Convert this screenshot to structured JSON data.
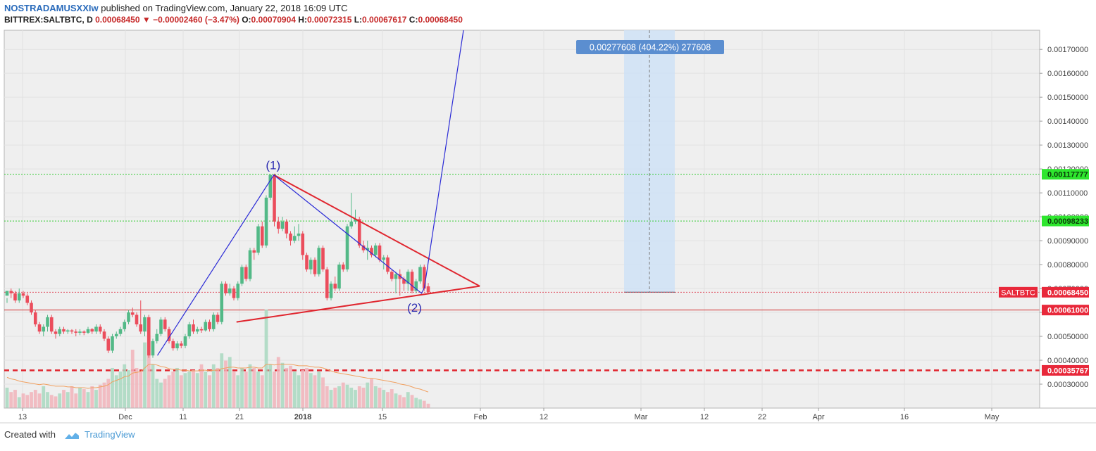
{
  "header": {
    "author": "NOSTRADAMUSXXIw",
    "published": "published on TradingView.com, January 22, 2018 16:09 UTC",
    "symbol": "BITTREX:SALTBTC, D",
    "last": "0.00068450",
    "change": "−0.00002460 (−3.47%)",
    "o_label": "O:",
    "o": "0.00070904",
    "h_label": "H:",
    "h": "0.00072315",
    "l_label": "L:",
    "l": "0.00067617",
    "c_label": "C:",
    "c": "0.00068450"
  },
  "footer": {
    "created": "Created with",
    "brand": "TradingView"
  },
  "colors": {
    "up": "#53b987",
    "down": "#eb4d5c",
    "triangle": "#e0262f",
    "wave": "#2b2bd6",
    "measure": "#cfe2f6",
    "support": "#e0262f",
    "level_green": "#33cc33"
  },
  "chart_data": {
    "type": "candlestick",
    "title": "",
    "xlabel": "",
    "ylabel": "",
    "ylim": [
      0.0002,
      0.00178
    ],
    "x_ticks": [
      "13",
      "Dec",
      "11",
      "21",
      "2018",
      "15",
      "Feb",
      "12",
      "Mar",
      "12",
      "22",
      "Apr",
      "16",
      "May"
    ],
    "y_ticks": [
      "0.00030000",
      "0.00040000",
      "0.00050000",
      "0.00060000",
      "0.00070000",
      "0.00080000",
      "0.00090000",
      "0.00100000",
      "0.00110000",
      "0.00120000",
      "0.00130000",
      "0.00140000",
      "0.00150000",
      "0.00160000",
      "0.00170000"
    ],
    "price_labels": [
      {
        "text": "0.00117777",
        "value": 0.00117777,
        "style": "green"
      },
      {
        "text": "0.00098233",
        "value": 0.00098233,
        "style": "green"
      },
      {
        "text": "0.00068450",
        "value": 0.0006845,
        "style": "red",
        "tag": "SALTBTC"
      },
      {
        "text": "0.00061000",
        "value": 0.00061,
        "style": "red"
      },
      {
        "text": "0.00035767",
        "value": 0.00035767,
        "style": "red"
      }
    ],
    "measure_label": "0.00277608 (404.22%) 277608",
    "wave_labels": [
      "(1)",
      "(2)"
    ],
    "candles": [
      [
        0.00067,
        0.00069,
        0.00066,
        0.00064
      ],
      [
        0.00069,
        0.00068,
        0.0007,
        0.00066
      ],
      [
        0.00068,
        0.00065,
        0.00069,
        0.00064
      ],
      [
        0.00065,
        0.00068,
        0.0007,
        0.00064
      ],
      [
        0.00068,
        0.00067,
        0.00069,
        0.00066
      ],
      [
        0.00067,
        0.00064,
        0.00068,
        0.00063
      ],
      [
        0.00064,
        0.0006,
        0.00065,
        0.00059
      ],
      [
        0.0006,
        0.00055,
        0.00061,
        0.00054
      ],
      [
        0.00055,
        0.00052,
        0.00056,
        0.00051
      ],
      [
        0.00052,
        0.00054,
        0.00055,
        0.0005
      ],
      [
        0.00054,
        0.00058,
        0.00059,
        0.00052
      ],
      [
        0.00058,
        0.00052,
        0.00059,
        0.00051
      ],
      [
        0.00052,
        0.00051,
        0.00053,
        0.00049
      ],
      [
        0.00051,
        0.00053,
        0.00054,
        0.0005
      ],
      [
        0.00053,
        0.00052,
        0.00054,
        0.00051
      ],
      [
        0.00052,
        0.000525,
        0.00053,
        0.00051
      ],
      [
        0.000525,
        0.00052,
        0.00053,
        0.00051
      ],
      [
        0.00052,
        0.000515,
        0.00053,
        0.0005
      ],
      [
        0.000515,
        0.00052,
        0.00053,
        0.000505
      ],
      [
        0.00052,
        0.000515,
        0.000525,
        0.000505
      ],
      [
        0.000515,
        0.00053,
        0.00054,
        0.00051
      ],
      [
        0.00053,
        0.00052,
        0.000535,
        0.00051
      ],
      [
        0.00052,
        0.00054,
        0.00055,
        0.00051
      ],
      [
        0.00054,
        0.00052,
        0.00055,
        0.00051
      ],
      [
        0.00052,
        0.00049,
        0.00053,
        0.00048
      ],
      [
        0.00049,
        0.00044,
        0.0005,
        0.00043
      ],
      [
        0.00044,
        0.0005,
        0.00051,
        0.00043
      ],
      [
        0.0005,
        0.00051,
        0.00052,
        0.00049
      ],
      [
        0.00051,
        0.00053,
        0.00054,
        0.0005
      ],
      [
        0.00053,
        0.00056,
        0.00057,
        0.00052
      ],
      [
        0.00056,
        0.0006,
        0.00061,
        0.00055
      ],
      [
        0.0006,
        0.00059,
        0.00062,
        0.00058
      ],
      [
        0.00059,
        0.00055,
        0.0006,
        0.00054
      ],
      [
        0.00055,
        0.00052,
        0.00065,
        0.00051
      ],
      [
        0.00052,
        0.00058,
        0.00059,
        0.0005
      ],
      [
        0.00058,
        0.00042,
        0.00059,
        0.00041
      ],
      [
        0.00042,
        0.00048,
        0.00049,
        0.00041
      ],
      [
        0.00048,
        0.00051,
        0.00053,
        0.00047
      ],
      [
        0.00051,
        0.00057,
        0.00058,
        0.0005
      ],
      [
        0.00057,
        0.00053,
        0.00058,
        0.00052
      ],
      [
        0.00053,
        0.00048,
        0.00054,
        0.00047
      ],
      [
        0.00048,
        0.00045,
        0.00049,
        0.00044
      ],
      [
        0.00045,
        0.00047,
        0.00048,
        0.00044
      ],
      [
        0.00047,
        0.00046,
        0.00048,
        0.00045
      ],
      [
        0.00046,
        0.0005,
        0.00051,
        0.00045
      ],
      [
        0.0005,
        0.00055,
        0.00056,
        0.00049
      ],
      [
        0.00055,
        0.00052,
        0.00057,
        0.00051
      ],
      [
        0.00052,
        0.00053,
        0.00054,
        0.00051
      ],
      [
        0.00053,
        0.000525,
        0.00054,
        0.000515
      ],
      [
        0.000525,
        0.00056,
        0.00057,
        0.00052
      ],
      [
        0.00056,
        0.00053,
        0.00057,
        0.00052
      ],
      [
        0.00053,
        0.00059,
        0.0006,
        0.00052
      ],
      [
        0.00059,
        0.00056,
        0.0006,
        0.00055
      ],
      [
        0.00056,
        0.00072,
        0.00073,
        0.00055
      ],
      [
        0.00072,
        0.00068,
        0.00073,
        0.00067
      ],
      [
        0.00068,
        0.0007,
        0.00072,
        0.00067
      ],
      [
        0.0007,
        0.00066,
        0.00071,
        0.00065
      ],
      [
        0.00066,
        0.00072,
        0.00073,
        0.00065
      ],
      [
        0.00072,
        0.00079,
        0.0008,
        0.00071
      ],
      [
        0.00079,
        0.00074,
        0.0008,
        0.00073
      ],
      [
        0.00074,
        0.00086,
        0.00087,
        0.00073
      ],
      [
        0.00086,
        0.00085,
        0.00087,
        0.00082
      ],
      [
        0.00085,
        0.00096,
        0.00097,
        0.00084
      ],
      [
        0.00096,
        0.00088,
        0.00098,
        0.00087
      ],
      [
        0.00088,
        0.00108,
        0.00109,
        0.00087
      ],
      [
        0.00108,
        0.001175,
        0.00118,
        0.00107
      ],
      [
        0.001175,
        0.00098,
        0.00118,
        0.00096
      ],
      [
        0.00098,
        0.00095,
        0.001,
        0.00093
      ],
      [
        0.00095,
        0.00098,
        0.001,
        0.00094
      ],
      [
        0.00098,
        0.00093,
        0.00099,
        0.00091
      ],
      [
        0.00093,
        0.0009,
        0.00094,
        0.00088
      ],
      [
        0.0009,
        0.00092,
        0.00096,
        0.00089
      ],
      [
        0.00092,
        0.00093,
        0.00097,
        0.0009
      ],
      [
        0.00093,
        0.00084,
        0.00094,
        0.00082
      ],
      [
        0.00084,
        0.00078,
        0.00085,
        0.00077
      ],
      [
        0.00078,
        0.00082,
        0.00083,
        0.00076
      ],
      [
        0.00082,
        0.00076,
        0.00083,
        0.00075
      ],
      [
        0.00076,
        0.00087,
        0.00088,
        0.00075
      ],
      [
        0.00087,
        0.00078,
        0.00088,
        0.00077
      ],
      [
        0.00078,
        0.00066,
        0.00079,
        0.00065
      ],
      [
        0.00066,
        0.00072,
        0.00073,
        0.00065
      ],
      [
        0.00072,
        0.0007,
        0.00075,
        0.00069
      ],
      [
        0.0007,
        0.0008,
        0.00081,
        0.00069
      ],
      [
        0.0008,
        0.00078,
        0.00081,
        0.00077
      ],
      [
        0.00078,
        0.00096,
        0.00097,
        0.00077
      ],
      [
        0.00096,
        0.00098,
        0.0011,
        0.00095
      ],
      [
        0.00098,
        0.00099,
        0.00103,
        0.00097
      ],
      [
        0.00099,
        0.00088,
        0.001,
        0.00087
      ],
      [
        0.00088,
        0.00086,
        0.0009,
        0.00085
      ],
      [
        0.00086,
        0.00087,
        0.0009,
        0.00082
      ],
      [
        0.00087,
        0.00084,
        0.00088,
        0.00083
      ],
      [
        0.00084,
        0.00088,
        0.00089,
        0.00083
      ],
      [
        0.00088,
        0.00082,
        0.00089,
        0.00081
      ],
      [
        0.00082,
        0.00083,
        0.00084,
        0.00078
      ],
      [
        0.00083,
        0.00077,
        0.00084,
        0.00076
      ],
      [
        0.00077,
        0.00074,
        0.00078,
        0.00073
      ],
      [
        0.00074,
        0.00076,
        0.00077,
        0.00068
      ],
      [
        0.00076,
        0.00074,
        0.00078,
        0.00067
      ],
      [
        0.00074,
        0.00072,
        0.00075,
        0.00069
      ],
      [
        0.00072,
        0.00077,
        0.00078,
        0.00069
      ],
      [
        0.00077,
        0.00069,
        0.00078,
        0.00068
      ],
      [
        0.00069,
        0.00073,
        0.00074,
        0.00068
      ],
      [
        0.00073,
        0.00079,
        0.0008,
        0.00072
      ],
      [
        0.00079,
        0.0007,
        0.0008,
        0.00069
      ],
      [
        0.000709,
        0.000685,
        0.000723,
        0.000676
      ]
    ],
    "volume": [
      0.28,
      0.22,
      0.25,
      0.15,
      0.2,
      0.18,
      0.22,
      0.25,
      0.2,
      0.3,
      0.22,
      0.18,
      0.16,
      0.2,
      0.25,
      0.22,
      0.3,
      0.2,
      0.28,
      0.26,
      0.22,
      0.3,
      0.25,
      0.32,
      0.35,
      0.4,
      0.55,
      0.45,
      0.5,
      0.6,
      0.52,
      0.8,
      0.55,
      0.5,
      0.9,
      1.0,
      0.6,
      0.4,
      0.35,
      0.4,
      0.45,
      0.5,
      0.55,
      0.45,
      0.48,
      0.5,
      0.52,
      0.48,
      0.6,
      0.5,
      0.45,
      0.6,
      0.55,
      0.75,
      0.65,
      0.7,
      0.5,
      0.45,
      0.55,
      0.5,
      0.6,
      0.55,
      0.5,
      0.45,
      1.35,
      0.6,
      0.5,
      0.7,
      0.62,
      0.55,
      0.58,
      0.5,
      0.45,
      0.52,
      0.55,
      0.48,
      0.45,
      0.5,
      0.42,
      0.3,
      0.25,
      0.28,
      0.3,
      0.35,
      0.32,
      0.28,
      0.25,
      0.3,
      0.28,
      0.35,
      0.4,
      0.3,
      0.28,
      0.25,
      0.22,
      0.26,
      0.2,
      0.18,
      0.15,
      0.22,
      0.18,
      0.14,
      0.12,
      0.1,
      0.06
    ],
    "volume_ma": [
      0.42,
      0.4,
      0.39,
      0.37,
      0.36,
      0.35,
      0.34,
      0.33,
      0.32,
      0.33,
      0.32,
      0.31,
      0.3,
      0.3,
      0.3,
      0.29,
      0.29,
      0.28,
      0.28,
      0.28,
      0.27,
      0.28,
      0.28,
      0.29,
      0.3,
      0.32,
      0.36,
      0.38,
      0.4,
      0.43,
      0.44,
      0.48,
      0.49,
      0.5,
      0.55,
      0.6,
      0.6,
      0.59,
      0.57,
      0.56,
      0.54,
      0.53,
      0.53,
      0.52,
      0.52,
      0.51,
      0.51,
      0.51,
      0.52,
      0.52,
      0.51,
      0.52,
      0.52,
      0.54,
      0.55,
      0.56,
      0.56,
      0.55,
      0.55,
      0.55,
      0.56,
      0.56,
      0.55,
      0.55,
      0.6,
      0.6,
      0.59,
      0.6,
      0.6,
      0.6,
      0.6,
      0.59,
      0.58,
      0.58,
      0.58,
      0.57,
      0.56,
      0.56,
      0.55,
      0.53,
      0.51,
      0.49,
      0.48,
      0.47,
      0.46,
      0.45,
      0.44,
      0.43,
      0.42,
      0.41,
      0.41,
      0.4,
      0.39,
      0.38,
      0.37,
      0.36,
      0.35,
      0.33,
      0.32,
      0.31,
      0.29,
      0.27,
      0.26,
      0.24,
      0.22
    ]
  }
}
